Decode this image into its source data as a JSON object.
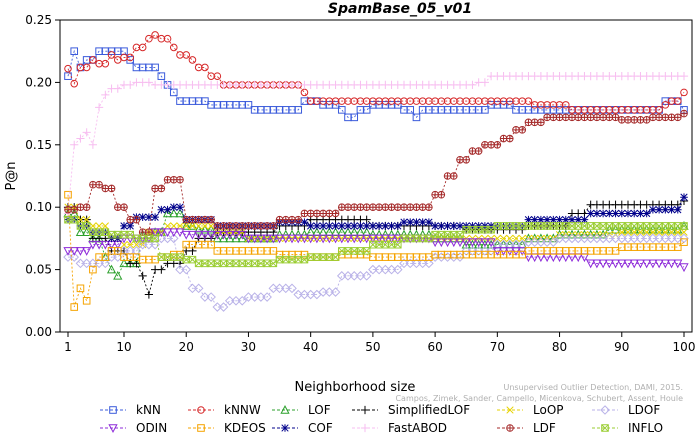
{
  "chart_data": {
    "type": "line",
    "title": "SpamBase_05_v01",
    "xlabel": "Neighborhood size",
    "ylabel": "P@n",
    "xlim": [
      1,
      100
    ],
    "ylim": [
      0,
      0.25
    ],
    "xticks": [
      1,
      10,
      20,
      30,
      40,
      50,
      60,
      70,
      80,
      90,
      100
    ],
    "yticks": [
      "0.00",
      "0.05",
      "0.10",
      "0.15",
      "0.20",
      "0.25"
    ],
    "grid": false,
    "legend_position": "bottom",
    "watermark_lines": [
      "Unsupervised Outlier Detection, DAMI, 2015.",
      "Campos, Zimek, Sander, Campello, Micenkova, Schubert, Assent, Houle"
    ],
    "series": [
      {
        "name": "kNN",
        "color": "#3b5bdb",
        "marker": "square",
        "points": [
          [
            1,
            0.205
          ],
          [
            2,
            0.225
          ],
          [
            3,
            0.212
          ],
          [
            4,
            0.218
          ],
          [
            5,
            0.218
          ],
          [
            6,
            0.225
          ],
          [
            10,
            0.225
          ],
          [
            11,
            0.218
          ],
          [
            12,
            0.212
          ],
          [
            16,
            0.205
          ],
          [
            17,
            0.198
          ],
          [
            18,
            0.192
          ],
          [
            19,
            0.185
          ],
          [
            22,
            0.185
          ],
          [
            24,
            0.182
          ],
          [
            30,
            0.182
          ],
          [
            31,
            0.178
          ],
          [
            38,
            0.178
          ],
          [
            39,
            0.185
          ],
          [
            42,
            0.182
          ],
          [
            45,
            0.178
          ],
          [
            46,
            0.172
          ],
          [
            48,
            0.178
          ],
          [
            50,
            0.182
          ],
          [
            55,
            0.178
          ],
          [
            57,
            0.172
          ],
          [
            58,
            0.178
          ],
          [
            66,
            0.178
          ],
          [
            69,
            0.182
          ],
          [
            72,
            0.182
          ],
          [
            73,
            0.178
          ],
          [
            96,
            0.178
          ],
          [
            97,
            0.185
          ],
          [
            100,
            0.178
          ]
        ]
      },
      {
        "name": "kNNW",
        "color": "#d62728",
        "marker": "circle",
        "points": [
          [
            1,
            0.211
          ],
          [
            2,
            0.199
          ],
          [
            3,
            0.212
          ],
          [
            5,
            0.218
          ],
          [
            6,
            0.215
          ],
          [
            8,
            0.222
          ],
          [
            9,
            0.218
          ],
          [
            10,
            0.22
          ],
          [
            12,
            0.228
          ],
          [
            14,
            0.235
          ],
          [
            15,
            0.238
          ],
          [
            16,
            0.235
          ],
          [
            18,
            0.228
          ],
          [
            19,
            0.222
          ],
          [
            21,
            0.218
          ],
          [
            22,
            0.212
          ],
          [
            24,
            0.205
          ],
          [
            26,
            0.198
          ],
          [
            38,
            0.198
          ],
          [
            39,
            0.192
          ],
          [
            40,
            0.185
          ],
          [
            70,
            0.185
          ],
          [
            76,
            0.182
          ],
          [
            80,
            0.182
          ],
          [
            82,
            0.178
          ],
          [
            90,
            0.178
          ],
          [
            95,
            0.178
          ],
          [
            97,
            0.182
          ],
          [
            98,
            0.185
          ],
          [
            100,
            0.192
          ]
        ]
      },
      {
        "name": "LOF",
        "color": "#2ca02c",
        "marker": "triangle",
        "points": [
          [
            1,
            0.095
          ],
          [
            3,
            0.08
          ],
          [
            5,
            0.075
          ],
          [
            7,
            0.06
          ],
          [
            8,
            0.05
          ],
          [
            9,
            0.045
          ],
          [
            10,
            0.055
          ],
          [
            13,
            0.078
          ],
          [
            15,
            0.08
          ],
          [
            17,
            0.095
          ],
          [
            20,
            0.085
          ],
          [
            22,
            0.082
          ],
          [
            25,
            0.075
          ],
          [
            30,
            0.075
          ],
          [
            35,
            0.078
          ],
          [
            40,
            0.08
          ],
          [
            50,
            0.078
          ],
          [
            60,
            0.075
          ],
          [
            65,
            0.07
          ],
          [
            70,
            0.07
          ],
          [
            75,
            0.075
          ],
          [
            80,
            0.078
          ],
          [
            88,
            0.082
          ],
          [
            95,
            0.082
          ],
          [
            100,
            0.085
          ]
        ]
      },
      {
        "name": "SimplifiedLOF",
        "color": "#000000",
        "marker": "plus",
        "points": [
          [
            1,
            0.1
          ],
          [
            3,
            0.09
          ],
          [
            5,
            0.075
          ],
          [
            8,
            0.065
          ],
          [
            11,
            0.055
          ],
          [
            13,
            0.045
          ],
          [
            14,
            0.03
          ],
          [
            15,
            0.05
          ],
          [
            17,
            0.055
          ],
          [
            20,
            0.065
          ],
          [
            22,
            0.075
          ],
          [
            25,
            0.08
          ],
          [
            30,
            0.08
          ],
          [
            35,
            0.085
          ],
          [
            40,
            0.09
          ],
          [
            45,
            0.09
          ],
          [
            50,
            0.085
          ],
          [
            55,
            0.085
          ],
          [
            60,
            0.085
          ],
          [
            65,
            0.082
          ],
          [
            70,
            0.082
          ],
          [
            75,
            0.085
          ],
          [
            82,
            0.095
          ],
          [
            85,
            0.102
          ],
          [
            100,
            0.105
          ]
        ]
      },
      {
        "name": "LoOP",
        "color": "#e6d200",
        "marker": "x",
        "points": [
          [
            1,
            0.1
          ],
          [
            3,
            0.09
          ],
          [
            5,
            0.085
          ],
          [
            8,
            0.075
          ],
          [
            10,
            0.07
          ],
          [
            14,
            0.08
          ],
          [
            17,
            0.085
          ],
          [
            20,
            0.085
          ],
          [
            25,
            0.08
          ],
          [
            30,
            0.075
          ],
          [
            40,
            0.075
          ],
          [
            50,
            0.075
          ],
          [
            60,
            0.075
          ],
          [
            70,
            0.075
          ],
          [
            80,
            0.078
          ],
          [
            90,
            0.08
          ],
          [
            100,
            0.08
          ]
        ]
      },
      {
        "name": "LDOF",
        "color": "#b9b2e8",
        "marker": "diamond",
        "points": [
          [
            1,
            0.06
          ],
          [
            3,
            0.055
          ],
          [
            5,
            0.055
          ],
          [
            8,
            0.06
          ],
          [
            10,
            0.065
          ],
          [
            13,
            0.07
          ],
          [
            16,
            0.075
          ],
          [
            19,
            0.05
          ],
          [
            21,
            0.035
          ],
          [
            23,
            0.028
          ],
          [
            25,
            0.02
          ],
          [
            27,
            0.025
          ],
          [
            30,
            0.028
          ],
          [
            34,
            0.035
          ],
          [
            38,
            0.03
          ],
          [
            42,
            0.032
          ],
          [
            45,
            0.045
          ],
          [
            50,
            0.05
          ],
          [
            55,
            0.055
          ],
          [
            60,
            0.06
          ],
          [
            65,
            0.065
          ],
          [
            70,
            0.07
          ],
          [
            75,
            0.072
          ],
          [
            80,
            0.075
          ],
          [
            90,
            0.075
          ],
          [
            100,
            0.075
          ]
        ]
      },
      {
        "name": "ODIN",
        "color": "#8e2bd9",
        "marker": "triangle-down",
        "points": [
          [
            1,
            0.065
          ],
          [
            5,
            0.07
          ],
          [
            10,
            0.075
          ],
          [
            15,
            0.08
          ],
          [
            20,
            0.078
          ],
          [
            30,
            0.075
          ],
          [
            40,
            0.075
          ],
          [
            50,
            0.075
          ],
          [
            60,
            0.072
          ],
          [
            70,
            0.065
          ],
          [
            75,
            0.06
          ],
          [
            80,
            0.06
          ],
          [
            85,
            0.055
          ],
          [
            90,
            0.055
          ],
          [
            95,
            0.055
          ],
          [
            100,
            0.052
          ]
        ]
      },
      {
        "name": "KDEOS",
        "color": "#f5a300",
        "marker": "square",
        "points": [
          [
            1,
            0.11
          ],
          [
            2,
            0.02
          ],
          [
            3,
            0.035
          ],
          [
            4,
            0.025
          ],
          [
            5,
            0.05
          ],
          [
            6,
            0.06
          ],
          [
            8,
            0.065
          ],
          [
            10,
            0.06
          ],
          [
            13,
            0.058
          ],
          [
            16,
            0.06
          ],
          [
            18,
            0.062
          ],
          [
            20,
            0.07
          ],
          [
            25,
            0.065
          ],
          [
            30,
            0.065
          ],
          [
            35,
            0.062
          ],
          [
            40,
            0.06
          ],
          [
            45,
            0.062
          ],
          [
            50,
            0.06
          ],
          [
            55,
            0.06
          ],
          [
            60,
            0.062
          ],
          [
            65,
            0.062
          ],
          [
            70,
            0.062
          ],
          [
            75,
            0.065
          ],
          [
            80,
            0.065
          ],
          [
            85,
            0.065
          ],
          [
            90,
            0.068
          ],
          [
            95,
            0.068
          ],
          [
            100,
            0.072
          ]
        ]
      },
      {
        "name": "COF",
        "color": "#00008b",
        "marker": "star",
        "points": [
          [
            1,
            0.09
          ],
          [
            3,
            0.085
          ],
          [
            5,
            0.08
          ],
          [
            8,
            0.075
          ],
          [
            10,
            0.085
          ],
          [
            12,
            0.092
          ],
          [
            16,
            0.098
          ],
          [
            18,
            0.1
          ],
          [
            20,
            0.09
          ],
          [
            25,
            0.085
          ],
          [
            30,
            0.085
          ],
          [
            35,
            0.088
          ],
          [
            40,
            0.085
          ],
          [
            45,
            0.085
          ],
          [
            50,
            0.085
          ],
          [
            55,
            0.088
          ],
          [
            60,
            0.085
          ],
          [
            70,
            0.085
          ],
          [
            75,
            0.09
          ],
          [
            80,
            0.09
          ],
          [
            85,
            0.095
          ],
          [
            90,
            0.095
          ],
          [
            95,
            0.098
          ],
          [
            100,
            0.108
          ]
        ]
      },
      {
        "name": "FastABOD",
        "color": "#f7bdf0",
        "marker": "plus",
        "points": [
          [
            1,
            0.095
          ],
          [
            2,
            0.15
          ],
          [
            3,
            0.155
          ],
          [
            4,
            0.16
          ],
          [
            5,
            0.15
          ],
          [
            6,
            0.18
          ],
          [
            7,
            0.19
          ],
          [
            8,
            0.195
          ],
          [
            10,
            0.198
          ],
          [
            12,
            0.2
          ],
          [
            15,
            0.198
          ],
          [
            20,
            0.198
          ],
          [
            30,
            0.198
          ],
          [
            40,
            0.198
          ],
          [
            50,
            0.198
          ],
          [
            60,
            0.198
          ],
          [
            67,
            0.2
          ],
          [
            69,
            0.205
          ],
          [
            75,
            0.205
          ],
          [
            85,
            0.205
          ],
          [
            100,
            0.205
          ]
        ]
      },
      {
        "name": "LDF",
        "color": "#a52a2a",
        "marker": "circle-plus",
        "points": [
          [
            1,
            0.098
          ],
          [
            3,
            0.1
          ],
          [
            5,
            0.118
          ],
          [
            7,
            0.115
          ],
          [
            9,
            0.1
          ],
          [
            11,
            0.09
          ],
          [
            13,
            0.08
          ],
          [
            15,
            0.115
          ],
          [
            17,
            0.122
          ],
          [
            20,
            0.09
          ],
          [
            25,
            0.085
          ],
          [
            30,
            0.085
          ],
          [
            35,
            0.09
          ],
          [
            39,
            0.095
          ],
          [
            42,
            0.095
          ],
          [
            45,
            0.1
          ],
          [
            50,
            0.1
          ],
          [
            55,
            0.1
          ],
          [
            58,
            0.1
          ],
          [
            60,
            0.11
          ],
          [
            62,
            0.125
          ],
          [
            64,
            0.138
          ],
          [
            66,
            0.145
          ],
          [
            68,
            0.15
          ],
          [
            71,
            0.155
          ],
          [
            73,
            0.162
          ],
          [
            75,
            0.168
          ],
          [
            78,
            0.172
          ],
          [
            85,
            0.172
          ],
          [
            90,
            0.17
          ],
          [
            95,
            0.172
          ],
          [
            100,
            0.175
          ]
        ]
      },
      {
        "name": "INFLO",
        "color": "#9acd32",
        "marker": "square-x",
        "points": [
          [
            1,
            0.09
          ],
          [
            3,
            0.085
          ],
          [
            5,
            0.08
          ],
          [
            8,
            0.078
          ],
          [
            12,
            0.075
          ],
          [
            16,
            0.06
          ],
          [
            20,
            0.058
          ],
          [
            22,
            0.055
          ],
          [
            25,
            0.055
          ],
          [
            30,
            0.055
          ],
          [
            35,
            0.058
          ],
          [
            40,
            0.06
          ],
          [
            45,
            0.065
          ],
          [
            50,
            0.07
          ],
          [
            55,
            0.075
          ],
          [
            60,
            0.078
          ],
          [
            65,
            0.082
          ],
          [
            70,
            0.085
          ],
          [
            75,
            0.085
          ],
          [
            80,
            0.085
          ],
          [
            90,
            0.085
          ],
          [
            100,
            0.085
          ]
        ]
      }
    ]
  }
}
